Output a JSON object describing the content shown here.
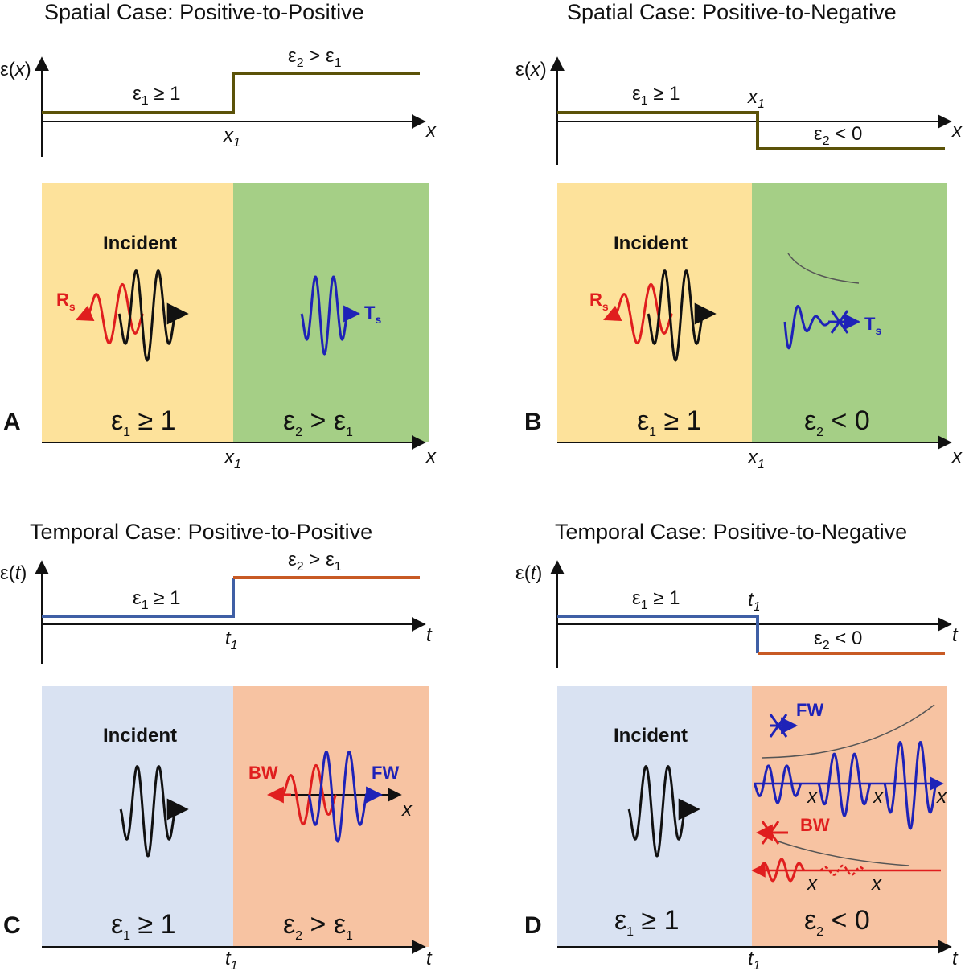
{
  "colors": {
    "yellow_region": "#fde29b",
    "green_region": "#a5cf86",
    "blue_region": "#d9e2f2",
    "orange_region": "#f7c3a2",
    "profile_spatial": "#5b5208",
    "profile_low": "#3f5fa5",
    "profile_high": "#c85a24",
    "incident": "#111111",
    "reflected": "#e01e1e",
    "transmitted": "#1e22b8"
  },
  "panels": {
    "A": {
      "letter": "A",
      "title": "Spatial Case: Positive-to-Positive",
      "axis_y": {
        "main": "ε(",
        "var": "x",
        "close": ")"
      },
      "axis_x": "x",
      "mark": {
        "main": "x",
        "sub": "1"
      },
      "eps1_main": "ε",
      "eps1_sub": "1",
      "eps1_rel": " ≥ 1",
      "eps2_main": "ε",
      "eps2_sub": "2",
      "eps2_rel": " > ε",
      "eps2_sub2": "1",
      "incident": "Incident",
      "reflected": {
        "main": "R",
        "sub": "s"
      },
      "transmitted": {
        "main": "T",
        "sub": "s"
      }
    },
    "B": {
      "letter": "B",
      "title": "Spatial Case: Positive-to-Negative",
      "axis_y": {
        "main": "ε(",
        "var": "x",
        "close": ")"
      },
      "axis_x": "x",
      "mark": {
        "main": "x",
        "sub": "1"
      },
      "eps1_main": "ε",
      "eps1_sub": "1",
      "eps1_rel": " ≥ 1",
      "eps2_main": "ε",
      "eps2_sub": "2",
      "eps2_rel": " < 0",
      "incident": "Incident",
      "reflected": {
        "main": "R",
        "sub": "s"
      },
      "transmitted": {
        "main": "T",
        "sub": "s"
      }
    },
    "C": {
      "letter": "C",
      "title": "Temporal Case: Positive-to-Positive",
      "axis_y": {
        "main": "ε(",
        "var": "t",
        "close": ")"
      },
      "axis_x": "t",
      "mark": {
        "main": "t",
        "sub": "1"
      },
      "eps1_main": "ε",
      "eps1_sub": "1",
      "eps1_rel": " ≥ 1",
      "eps2_main": "ε",
      "eps2_sub": "2",
      "eps2_rel": " > ε",
      "eps2_sub2": "1",
      "incident": "Incident",
      "backward": "BW",
      "forward": "FW",
      "wave_axis": "x"
    },
    "D": {
      "letter": "D",
      "title": "Temporal Case: Positive-to-Negative",
      "axis_y": {
        "main": "ε(",
        "var": "t",
        "close": ")"
      },
      "axis_x": "t",
      "mark": {
        "main": "t",
        "sub": "1"
      },
      "eps1_main": "ε",
      "eps1_sub": "1",
      "eps1_rel": " ≥ 1",
      "eps2_main": "ε",
      "eps2_sub": "2",
      "eps2_rel": " < 0",
      "incident": "Incident",
      "backward": "BW",
      "forward": "FW",
      "wave_axis": "x"
    }
  }
}
